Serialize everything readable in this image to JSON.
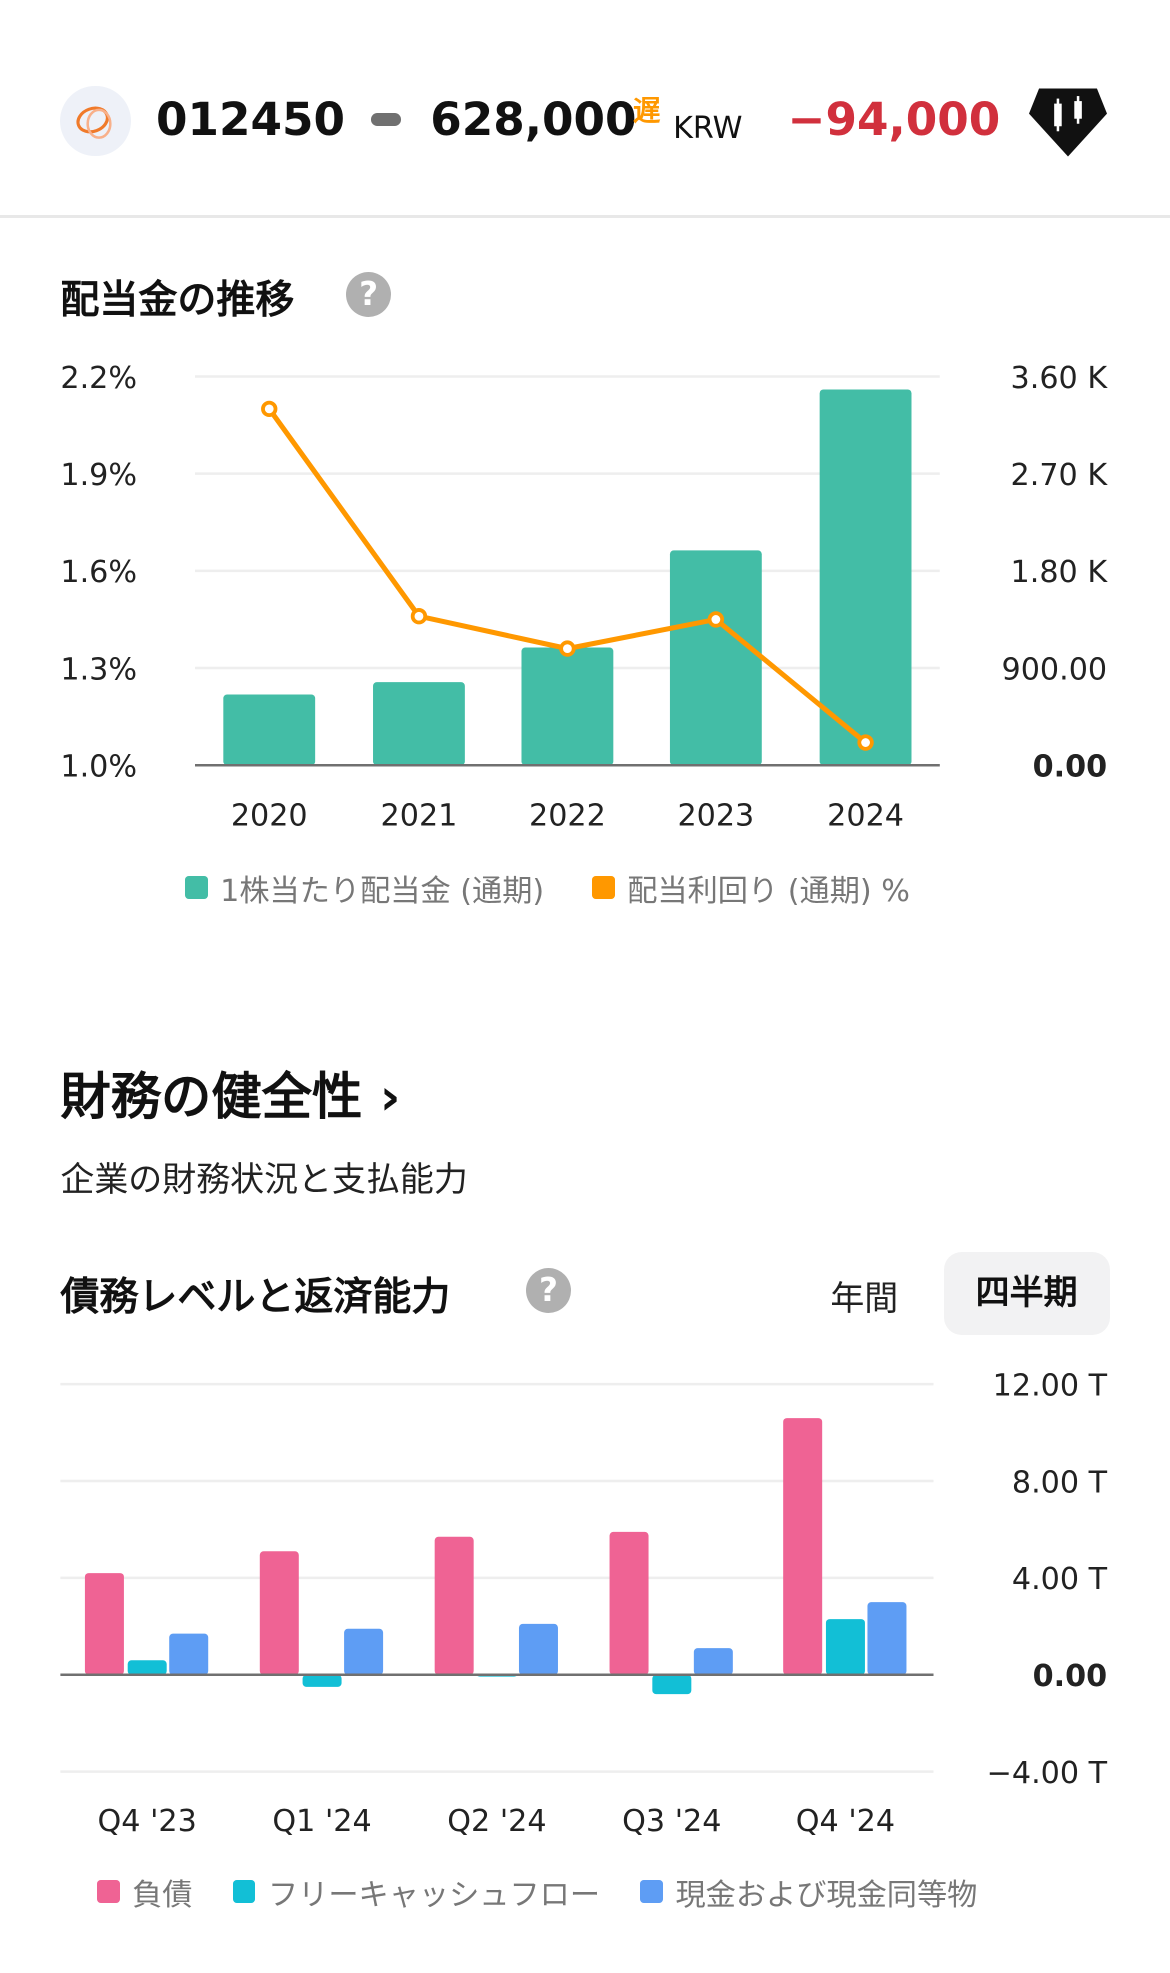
{
  "header": {
    "ticker": "012450",
    "price": "628,000",
    "delay_badge": "遅",
    "currency": "KRW",
    "change": "−94,000",
    "logo_icon": "company-logo-swirl",
    "chart_button_icon": "candlestick-icon",
    "colors": {
      "change": "#D1303D",
      "delay": "#FF9800"
    }
  },
  "dividend": {
    "title": "配当金の推移",
    "help_icon": "?",
    "legend": [
      "1株当たり配当金 (通期)",
      "配当利回り (通期) %"
    ]
  },
  "health": {
    "title": "財務の健全性",
    "chevron": "›",
    "subtitle": "企業の財務状況と支払能力"
  },
  "debt": {
    "title": "債務レベルと返済能力",
    "help_icon": "?",
    "toggle": [
      "年間",
      "四半期"
    ],
    "selected": "四半期",
    "legend": [
      "負債",
      "フリーキャッシュフロー",
      "現金および現金同等物"
    ]
  },
  "chart_data": [
    {
      "type": "bar+line",
      "categories": [
        "2020",
        "2021",
        "2022",
        "2023",
        "2024"
      ],
      "series": [
        {
          "name": "1株当たり配当金 (通期)",
          "type": "bar",
          "axis": "right",
          "color": "#43BDA6",
          "values": [
            655,
            770,
            1090,
            1990,
            3480
          ]
        },
        {
          "name": "配当利回り (通期) %",
          "type": "line",
          "axis": "left",
          "color": "#FF9800",
          "values": [
            2.1,
            1.46,
            1.36,
            1.45,
            1.07
          ]
        }
      ],
      "left_axis": {
        "ticks": [
          "2.2%",
          "1.9%",
          "1.6%",
          "1.3%",
          "1.0%"
        ],
        "range": [
          1.0,
          2.2
        ]
      },
      "right_axis": {
        "ticks": [
          "3.60 K",
          "2.70 K",
          "1.80 K",
          "900.00",
          "0.00"
        ],
        "range": [
          0,
          3600
        ]
      },
      "grid": true,
      "legend": "bottom"
    },
    {
      "type": "bar",
      "categories": [
        "Q4 '23",
        "Q1 '24",
        "Q2 '24",
        "Q3 '24",
        "Q4 '24"
      ],
      "series": [
        {
          "name": "負債",
          "color": "#EF6394",
          "values": [
            4.2,
            5.1,
            5.7,
            5.9,
            10.6
          ]
        },
        {
          "name": "フリーキャッシュフロー",
          "color": "#12BFD6",
          "values": [
            0.6,
            -0.5,
            -0.05,
            -0.8,
            2.3
          ]
        },
        {
          "name": "現金および現金同等物",
          "color": "#5E9DF4",
          "values": [
            1.7,
            1.9,
            2.1,
            1.1,
            3.0
          ]
        }
      ],
      "unit": "T",
      "right_axis": {
        "ticks": [
          "12.00 T",
          "8.00 T",
          "4.00 T",
          "0.00",
          "−4.00 T"
        ],
        "range": [
          -4,
          12
        ]
      },
      "grid": true,
      "legend": "bottom"
    }
  ]
}
